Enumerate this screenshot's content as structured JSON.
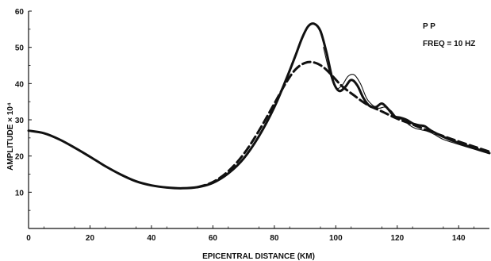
{
  "chart_data": {
    "type": "line",
    "title": "",
    "xlabel": "EPICENTRAL DISTANCE (KM)",
    "ylabel": "AMPLITUDE × 10⁴",
    "xlim": [
      0,
      150
    ],
    "ylim": [
      0,
      60
    ],
    "x_ticks": [
      0,
      20,
      40,
      60,
      80,
      100,
      120,
      140
    ],
    "y_ticks": [
      10,
      20,
      30,
      40,
      50,
      60
    ],
    "x_tick_labels": [
      "0",
      "20",
      "40",
      "60",
      "80",
      "100",
      "120",
      "140"
    ],
    "y_tick_labels": [
      "10",
      "20",
      "30",
      "40",
      "50",
      "60"
    ],
    "annotations": [
      "P P",
      "FREQ = 10 HZ"
    ],
    "grid": false,
    "legend": "none",
    "series": [
      {
        "style": "solid-thick",
        "color": "#111111",
        "x": [
          0,
          5,
          10,
          15,
          20,
          25,
          30,
          35,
          40,
          45,
          50,
          55,
          60,
          65,
          70,
          75,
          80,
          84,
          87,
          89,
          91,
          93,
          95,
          97,
          99,
          101,
          103,
          105,
          107,
          109,
          111,
          113,
          115,
          117,
          119,
          121,
          123,
          125,
          127,
          129,
          131,
          135,
          140,
          145,
          150
        ],
        "y": [
          27,
          26.3,
          24.6,
          22.3,
          19.8,
          17.2,
          14.9,
          13,
          11.9,
          11.3,
          11.1,
          11.4,
          12.6,
          15.2,
          19.3,
          25.5,
          33.5,
          41.5,
          48,
          52.5,
          55.8,
          56.5,
          54.5,
          48.5,
          41,
          38,
          39,
          41,
          39.5,
          36,
          33.8,
          33.5,
          34.5,
          33,
          31,
          30.6,
          30,
          29,
          28.5,
          28.2,
          27,
          25.3,
          23.6,
          22.2,
          20.8
        ]
      },
      {
        "style": "dashed",
        "color": "#111111",
        "x": [
          55,
          60,
          65,
          70,
          75,
          80,
          84,
          87,
          90,
          93,
          96,
          99,
          102,
          106,
          110,
          115,
          120,
          125,
          130,
          135,
          140,
          145,
          150
        ],
        "y": [
          11.4,
          12.8,
          15.8,
          20.5,
          27,
          34.5,
          40.5,
          44,
          45.7,
          45.8,
          44.5,
          42,
          39.3,
          36.7,
          34.3,
          32.3,
          30.3,
          28.7,
          27,
          25.5,
          24,
          22.6,
          21.2
        ]
      },
      {
        "style": "solid-thin",
        "color": "#111111",
        "x": [
          96,
          98,
          100,
          102,
          104,
          106,
          108,
          110,
          112,
          114,
          116,
          118,
          120,
          122,
          124,
          126,
          128,
          130,
          132,
          135,
          140,
          145,
          150
        ],
        "y": [
          50,
          43,
          38.8,
          39.5,
          42,
          42.4,
          40,
          36,
          34,
          33.2,
          33.5,
          32.5,
          30.5,
          30,
          28.5,
          27.6,
          27.2,
          26.8,
          26,
          24.6,
          23.2,
          21.9,
          20.6
        ]
      }
    ]
  }
}
